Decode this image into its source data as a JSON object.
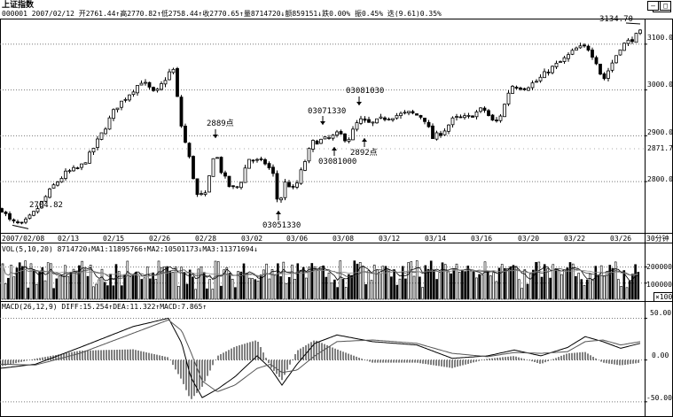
{
  "header": {
    "index_name": "上证指数",
    "info_line": "000001 2007/02/12 开2761.44↑高2770.82↑低2758.44↑收2770.65↑量8714720↓额859151↓跌0.00% 振0.45% 迭(9.61)0.35%",
    "window_buttons": [
      "—",
      "□"
    ]
  },
  "price_chart": {
    "y_ticks": [
      "3100.0",
      "3000.0",
      "2900.0",
      "2871.7",
      "2800.0"
    ],
    "annotations": [
      "2704.82",
      "2889点",
      "03071330",
      "03081030",
      "03051330",
      "03081000",
      "2892点",
      "3134.70"
    ],
    "x_labels": [
      "2007/02/08",
      "02/13",
      "02/15",
      "02/26",
      "02/28",
      "03/02",
      "03/06",
      "03/08",
      "03/12",
      "03/14",
      "03/16",
      "03/20",
      "03/22",
      "03/26"
    ],
    "period_label": "30分钟"
  },
  "vol_panel": {
    "header": "VOL(5,10,20) 8714720↓MA1:11895766↑MA2:10501173↓MA3:11371694↓",
    "y_ticks": [
      "200000",
      "100000"
    ],
    "scale_badge": "×100"
  },
  "macd_panel": {
    "header": "MACD(26,12,9) DIFF:15.254↑DEA:11.322↑MACD:7.865↑",
    "y_ticks": [
      "50.00",
      "0.00",
      "-50.00"
    ]
  },
  "chart_data": [
    {
      "type": "candlestick",
      "title": "上证指数",
      "ylim": [
        2690,
        3150
      ],
      "y_grid": [
        2800,
        2900,
        3000,
        3100
      ],
      "price_path": [
        [
          0,
          2745
        ],
        [
          12,
          2712
        ],
        [
          25,
          2705
        ],
        [
          40,
          2735
        ],
        [
          60,
          2790
        ],
        [
          75,
          2820
        ],
        [
          90,
          2830
        ],
        [
          100,
          2855
        ],
        [
          115,
          2905
        ],
        [
          130,
          2960
        ],
        [
          145,
          2990
        ],
        [
          160,
          3020
        ],
        [
          175,
          2990
        ],
        [
          185,
          3020
        ],
        [
          195,
          3050
        ],
        [
          205,
          2915
        ],
        [
          215,
          2840
        ],
        [
          222,
          2770
        ],
        [
          232,
          2770
        ],
        [
          242,
          2870
        ],
        [
          250,
          2820
        ],
        [
          260,
          2785
        ],
        [
          270,
          2790
        ],
        [
          280,
          2850
        ],
        [
          300,
          2840
        ],
        [
          308,
          2815
        ],
        [
          314,
          2745
        ],
        [
          322,
          2800
        ],
        [
          332,
          2780
        ],
        [
          342,
          2835
        ],
        [
          352,
          2885
        ],
        [
          362,
          2890
        ],
        [
          372,
          2895
        ],
        [
          382,
          2905
        ],
        [
          392,
          2890
        ],
        [
          405,
          2935
        ],
        [
          418,
          2925
        ],
        [
          432,
          2938
        ],
        [
          448,
          2945
        ],
        [
          462,
          2950
        ],
        [
          478,
          2940
        ],
        [
          488,
          2895
        ],
        [
          500,
          2910
        ],
        [
          512,
          2938
        ],
        [
          528,
          2940
        ],
        [
          545,
          2960
        ],
        [
          558,
          2925
        ],
        [
          566,
          2950
        ],
        [
          576,
          3010
        ],
        [
          592,
          3005
        ],
        [
          606,
          3020
        ],
        [
          620,
          3045
        ],
        [
          635,
          3065
        ],
        [
          650,
          3090
        ],
        [
          662,
          3095
        ],
        [
          672,
          3065
        ],
        [
          680,
          3020
        ],
        [
          688,
          3050
        ],
        [
          700,
          3095
        ],
        [
          712,
          3110
        ],
        [
          722,
          3125
        ]
      ],
      "points": [
        {
          "label": "2704.82",
          "value": 2704.82
        },
        {
          "label": "2889点",
          "value": 2889
        },
        {
          "label": "2892点",
          "value": 2892
        },
        {
          "label": "3134.70",
          "value": 3134.7
        }
      ]
    },
    {
      "type": "bar",
      "title": "VOL(5,10,20)",
      "ylim": [
        0,
        280000
      ],
      "y_grid": [
        100000,
        200000
      ],
      "volume_level": 100000,
      "moving_averages": 3
    },
    {
      "type": "line",
      "title": "MACD(26,12,9)",
      "ylim": [
        -65,
        60
      ],
      "y_grid": [
        -50,
        0,
        50
      ],
      "series": [
        {
          "name": "DIFF",
          "values": [
            [
              0,
              -10
            ],
            [
              40,
              -5
            ],
            [
              90,
              15
            ],
            [
              150,
              40
            ],
            [
              190,
              50
            ],
            [
              205,
              20
            ],
            [
              215,
              -20
            ],
            [
              228,
              -45
            ],
            [
              245,
              -35
            ],
            [
              265,
              -20
            ],
            [
              290,
              5
            ],
            [
              305,
              -10
            ],
            [
              318,
              -30
            ],
            [
              335,
              -5
            ],
            [
              355,
              20
            ],
            [
              380,
              30
            ],
            [
              420,
              22
            ],
            [
              470,
              18
            ],
            [
              510,
              2
            ],
            [
              550,
              5
            ],
            [
              580,
              12
            ],
            [
              610,
              5
            ],
            [
              640,
              15
            ],
            [
              660,
              28
            ],
            [
              680,
              22
            ],
            [
              700,
              14
            ],
            [
              722,
              20
            ]
          ]
        },
        {
          "name": "DEA",
          "values": [
            [
              0,
              -5
            ],
            [
              40,
              -6
            ],
            [
              90,
              8
            ],
            [
              150,
              32
            ],
            [
              190,
              48
            ],
            [
              205,
              35
            ],
            [
              215,
              10
            ],
            [
              228,
              -25
            ],
            [
              245,
              -38
            ],
            [
              265,
              -30
            ],
            [
              290,
              -10
            ],
            [
              305,
              -5
            ],
            [
              318,
              -15
            ],
            [
              335,
              -12
            ],
            [
              355,
              5
            ],
            [
              380,
              22
            ],
            [
              420,
              24
            ],
            [
              470,
              20
            ],
            [
              510,
              8
            ],
            [
              550,
              4
            ],
            [
              580,
              9
            ],
            [
              610,
              8
            ],
            [
              640,
              10
            ],
            [
              660,
              22
            ],
            [
              680,
              24
            ],
            [
              700,
              18
            ],
            [
              722,
              22
            ]
          ]
        }
      ]
    }
  ]
}
